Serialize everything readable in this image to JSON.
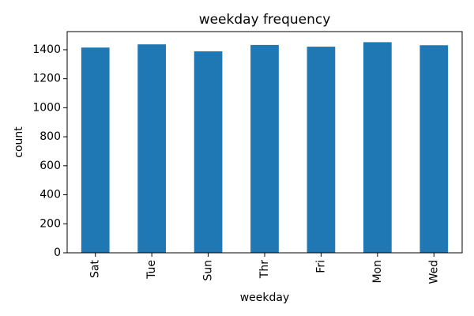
{
  "chart_data": {
    "type": "bar",
    "title": "weekday frequency",
    "xlabel": "weekday",
    "ylabel": "count",
    "categories": [
      "Sat",
      "Tue",
      "Sun",
      "Thr",
      "Fri",
      "Mon",
      "Wed"
    ],
    "values": [
      1415,
      1437,
      1389,
      1433,
      1421,
      1452,
      1431
    ],
    "ylim": [
      0,
      1525
    ],
    "yticks": [
      0,
      200,
      400,
      600,
      800,
      1000,
      1200,
      1400
    ],
    "grid": false,
    "legend": "none",
    "bar_color": "#1f77b4"
  }
}
